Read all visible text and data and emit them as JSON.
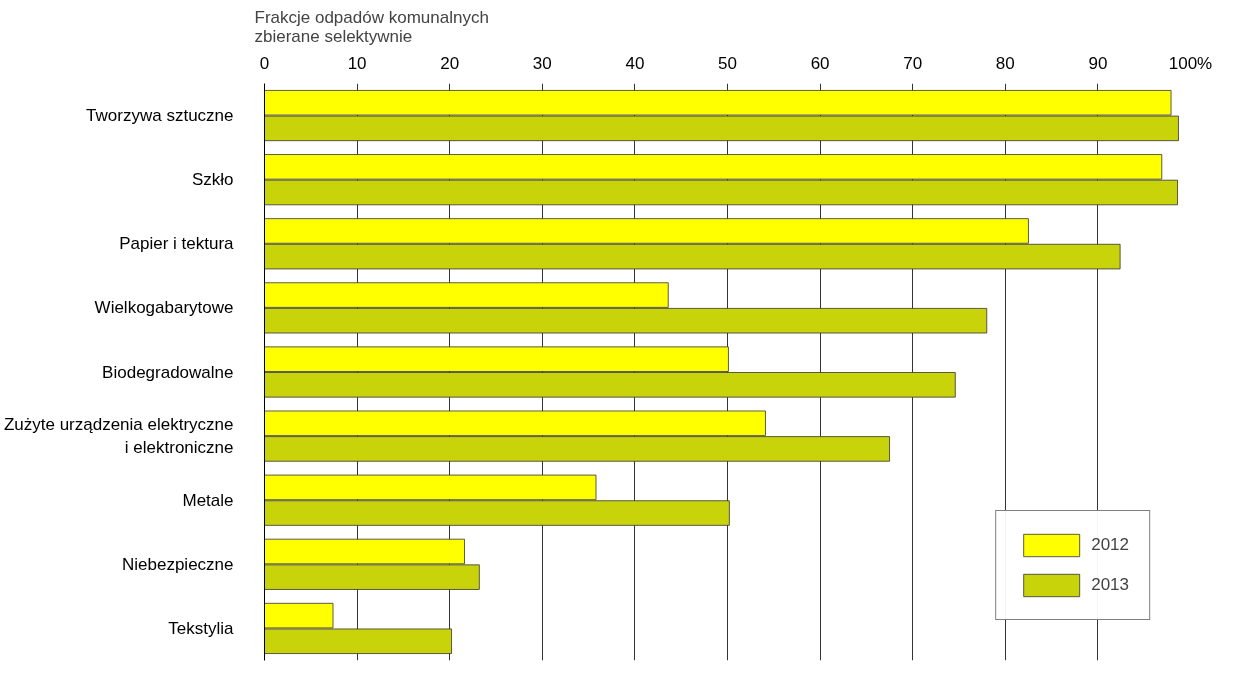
{
  "chart_data": {
    "type": "bar",
    "orientation": "horizontal",
    "title": "Frakcje odpadów komunalnych\nzbierane selektywnie",
    "categories": [
      "Tworzywa sztuczne",
      "Szkło",
      "Papier i tektura",
      "Wielkogabarytowe",
      "Biodegradowalne",
      "Zużyte urządzenia elektryczne\ni elektroniczne",
      "Metale",
      "Niebezpieczne",
      "Tekstylia"
    ],
    "series": [
      {
        "name": "2012",
        "color": "#ffff00",
        "values": [
          97.9,
          96.9,
          82.5,
          43.6,
          50.1,
          54.1,
          35.8,
          21.6,
          7.4
        ]
      },
      {
        "name": "2013",
        "color": "#c8d30a",
        "values": [
          98.7,
          98.6,
          92.4,
          78.0,
          74.6,
          67.5,
          50.2,
          23.2,
          20.2
        ]
      }
    ],
    "xlim": [
      0,
      100
    ],
    "xticks": [
      0,
      10,
      20,
      30,
      40,
      50,
      60,
      70,
      80,
      90,
      {
        "value": 100,
        "label": "100%"
      }
    ],
    "grid": "x",
    "legend": "bottom right"
  }
}
